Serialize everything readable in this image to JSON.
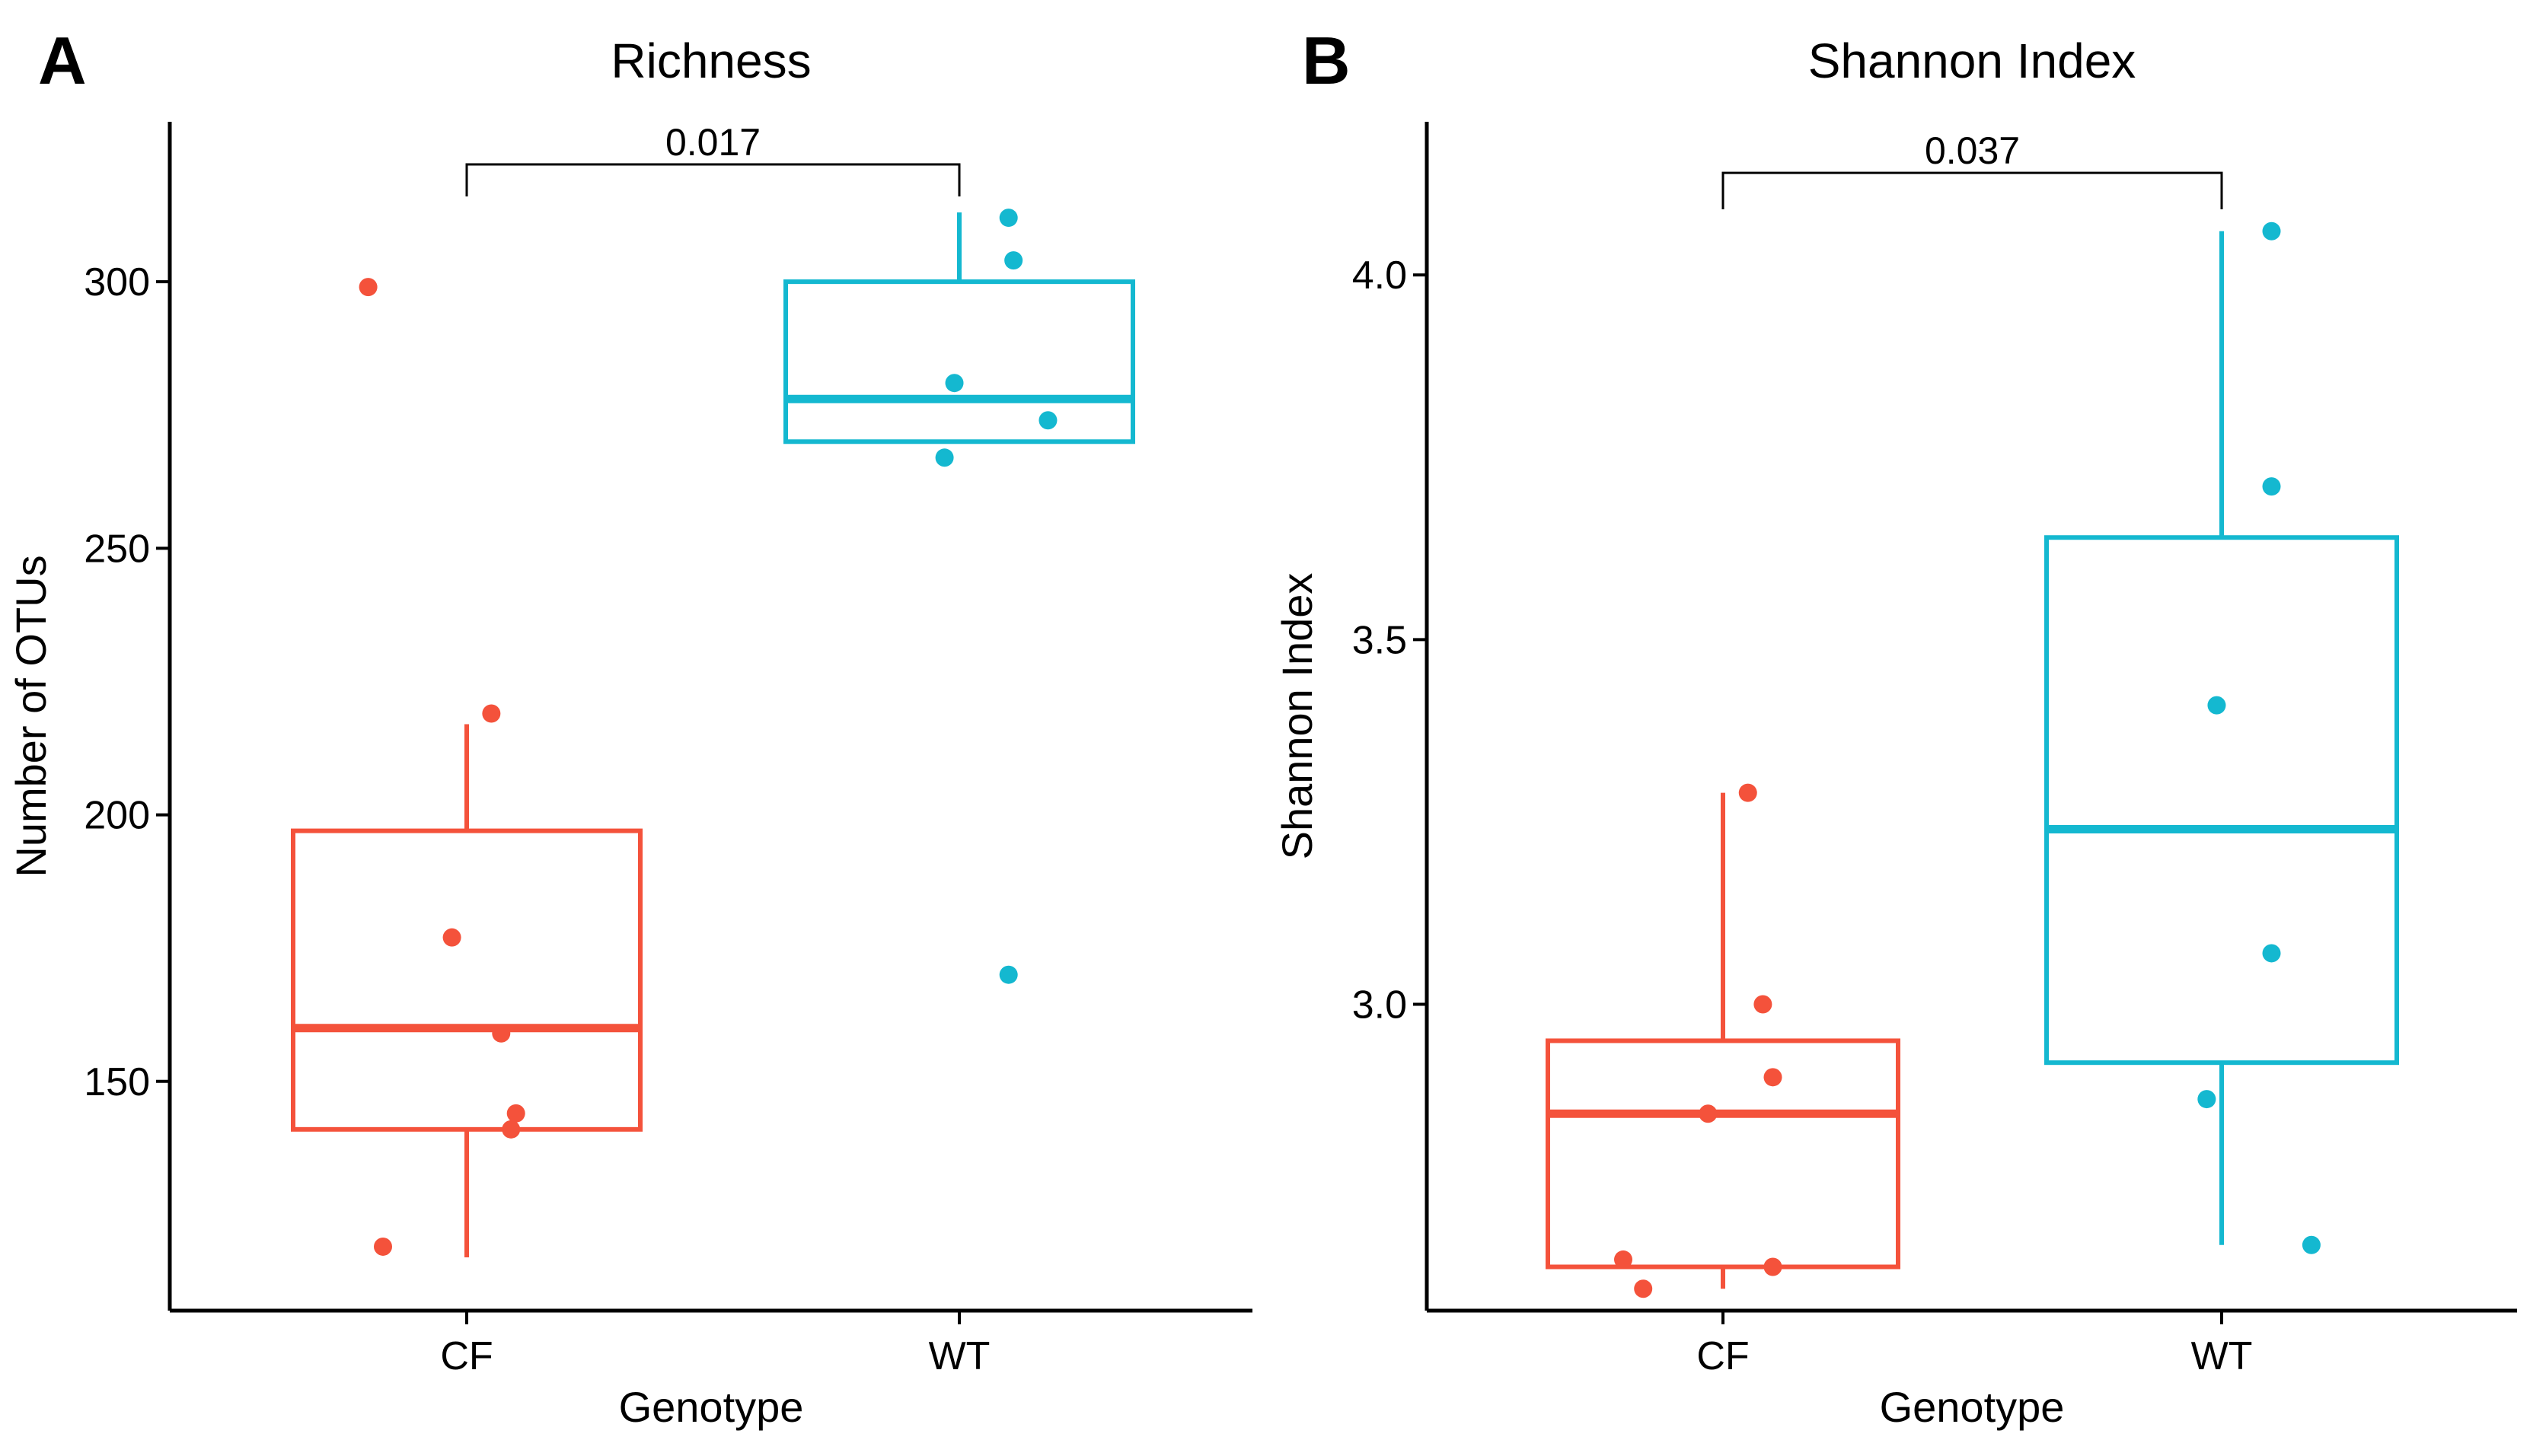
{
  "colors": {
    "CF": "#f4523b",
    "WT": "#14b8d0",
    "axis": "#000000"
  },
  "chart_data": [
    {
      "type": "boxplot",
      "panel_label": "A",
      "title": "Richness",
      "xlabel": "Genotype",
      "ylabel": "Number of OTUs",
      "categories": [
        "CF",
        "WT"
      ],
      "ylim": [
        107,
        330
      ],
      "yticks": [
        150,
        200,
        250,
        300
      ],
      "ytick_labels": [
        "150",
        "200",
        "250",
        "300"
      ],
      "boxes": [
        {
          "name": "CF",
          "q1": 141,
          "median": 160,
          "q3": 197,
          "whisker_low": 117,
          "whisker_high": 217
        },
        {
          "name": "WT",
          "q1": 270,
          "median": 278,
          "q3": 300,
          "whisker_low": 270,
          "whisker_high": 313
        }
      ],
      "points": [
        {
          "group": "CF",
          "jitter": -0.2,
          "y": 299
        },
        {
          "group": "CF",
          "jitter": 0.05,
          "y": 219
        },
        {
          "group": "CF",
          "jitter": -0.03,
          "y": 177
        },
        {
          "group": "CF",
          "jitter": 0.07,
          "y": 159
        },
        {
          "group": "CF",
          "jitter": 0.1,
          "y": 144
        },
        {
          "group": "CF",
          "jitter": 0.09,
          "y": 141
        },
        {
          "group": "CF",
          "jitter": -0.17,
          "y": 119
        },
        {
          "group": "WT",
          "jitter": 0.1,
          "y": 312
        },
        {
          "group": "WT",
          "jitter": 0.11,
          "y": 304
        },
        {
          "group": "WT",
          "jitter": -0.01,
          "y": 281
        },
        {
          "group": "WT",
          "jitter": 0.18,
          "y": 274
        },
        {
          "group": "WT",
          "jitter": -0.03,
          "y": 267
        },
        {
          "group": "WT",
          "jitter": 0.1,
          "y": 170
        }
      ],
      "comparison": {
        "from": "CF",
        "to": "WT",
        "label": "0.017",
        "y": 322,
        "tip": 316
      }
    },
    {
      "type": "boxplot",
      "panel_label": "B",
      "title": "Shannon Index",
      "xlabel": "Genotype",
      "ylabel": "Shannon Index",
      "categories": [
        "CF",
        "WT"
      ],
      "ylim": [
        2.58,
        4.21
      ],
      "yticks": [
        3.0,
        3.5,
        4.0
      ],
      "ytick_labels": [
        "3.0",
        "3.5",
        "4.0"
      ],
      "boxes": [
        {
          "name": "CF",
          "q1": 2.64,
          "median": 2.85,
          "q3": 2.95,
          "whisker_low": 2.61,
          "whisker_high": 3.29
        },
        {
          "name": "WT",
          "q1": 2.92,
          "median": 3.24,
          "q3": 3.64,
          "whisker_low": 2.67,
          "whisker_high": 4.06
        }
      ],
      "points": [
        {
          "group": "CF",
          "jitter": 0.05,
          "y": 3.29
        },
        {
          "group": "CF",
          "jitter": 0.08,
          "y": 3.0
        },
        {
          "group": "CF",
          "jitter": 0.1,
          "y": 2.9
        },
        {
          "group": "CF",
          "jitter": -0.03,
          "y": 2.85
        },
        {
          "group": "CF",
          "jitter": -0.2,
          "y": 2.65
        },
        {
          "group": "CF",
          "jitter": 0.1,
          "y": 2.64
        },
        {
          "group": "CF",
          "jitter": -0.16,
          "y": 2.61
        },
        {
          "group": "WT",
          "jitter": 0.1,
          "y": 4.06
        },
        {
          "group": "WT",
          "jitter": 0.1,
          "y": 3.71
        },
        {
          "group": "WT",
          "jitter": -0.01,
          "y": 3.41
        },
        {
          "group": "WT",
          "jitter": 0.1,
          "y": 3.07
        },
        {
          "group": "WT",
          "jitter": -0.03,
          "y": 2.87
        },
        {
          "group": "WT",
          "jitter": 0.18,
          "y": 2.67
        }
      ],
      "comparison": {
        "from": "CF",
        "to": "WT",
        "label": "0.037",
        "y": 4.14,
        "tip": 4.09
      }
    }
  ]
}
